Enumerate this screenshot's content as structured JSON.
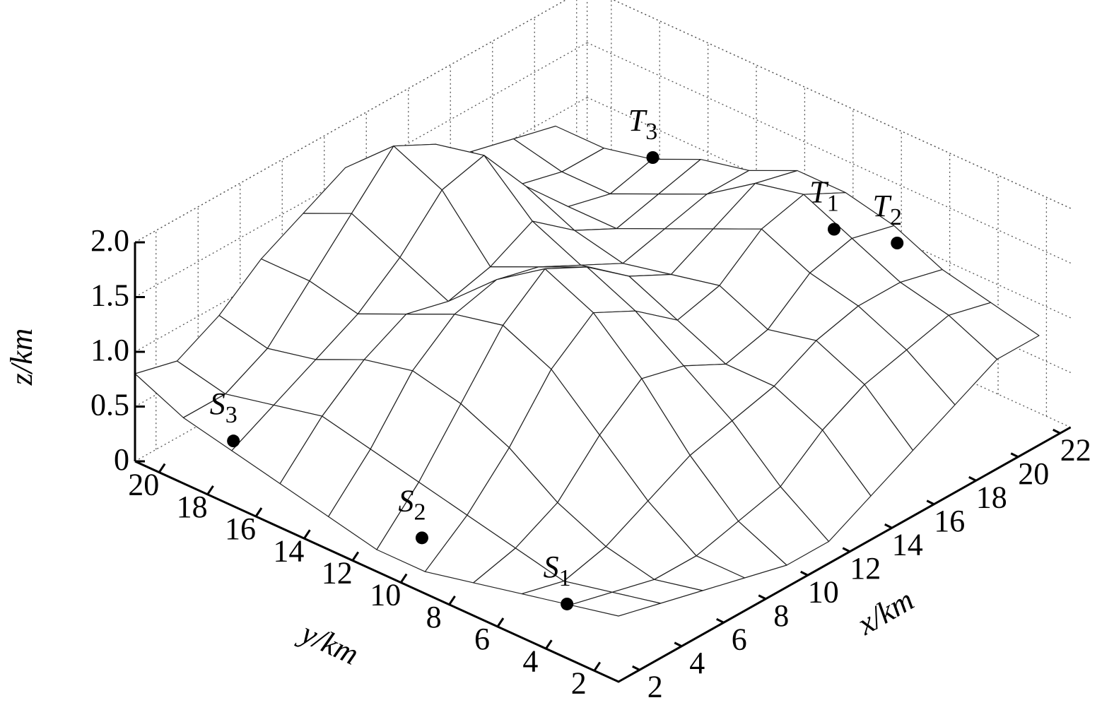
{
  "chart_data": {
    "type": "surface3d",
    "xlabel": "x/km",
    "ylabel": "y/km",
    "zlabel": "z/km",
    "xlim": [
      1,
      22.5
    ],
    "ylim": [
      1,
      21
    ],
    "zlim": [
      0,
      2
    ],
    "xticks": [
      2,
      4,
      6,
      8,
      10,
      12,
      14,
      16,
      18,
      20,
      22
    ],
    "yticks": [
      2,
      4,
      6,
      8,
      10,
      12,
      14,
      16,
      18,
      20
    ],
    "zticks": [
      0,
      0.5,
      {
        "value": 1,
        "label": "1.0"
      },
      1.5,
      {
        "value": 2,
        "label": "2.0"
      }
    ],
    "grid": true,
    "surface": {
      "x": [
        1,
        3,
        5,
        7,
        9,
        11,
        13,
        15,
        17,
        19,
        21
      ],
      "y": [
        1,
        3,
        5,
        7,
        9,
        11,
        13,
        15,
        17,
        19,
        21
      ],
      "z": [
        [
          0.6,
          0.5,
          0.4,
          0.3,
          0.2,
          0.2,
          0.4,
          0.6,
          0.8,
          1.0,
          1.0
        ],
        [
          0.5,
          0.4,
          0.3,
          0.3,
          0.4,
          0.5,
          0.8,
          1.0,
          1.1,
          1.2,
          1.1
        ],
        [
          0.4,
          0.3,
          0.4,
          0.6,
          0.8,
          0.9,
          1.0,
          1.2,
          1.3,
          1.3,
          1.2
        ],
        [
          0.3,
          0.4,
          0.6,
          1.0,
          1.3,
          1.2,
          1.0,
          1.1,
          1.4,
          1.5,
          1.4
        ],
        [
          0.2,
          0.5,
          0.9,
          1.4,
          1.7,
          1.5,
          1.2,
          1.3,
          1.6,
          1.7,
          1.5
        ],
        [
          0.2,
          0.6,
          1.1,
          1.6,
          1.9,
          1.7,
          1.4,
          1.2,
          1.4,
          1.6,
          1.5
        ],
        [
          0.3,
          0.7,
          1.2,
          1.5,
          1.6,
          1.5,
          1.3,
          1.1,
          1.2,
          1.3,
          1.3
        ],
        [
          0.4,
          0.8,
          1.1,
          1.3,
          1.2,
          1.3,
          1.5,
          1.2,
          1.0,
          1.1,
          1.2
        ],
        [
          0.5,
          0.7,
          0.9,
          1.1,
          1.4,
          1.8,
          1.9,
          1.4,
          1.0,
          0.9,
          1.0
        ],
        [
          0.6,
          0.6,
          0.8,
          1.2,
          1.6,
          2.0,
          1.8,
          1.3,
          1.0,
          0.9,
          0.9
        ],
        [
          0.8,
          0.7,
          0.9,
          1.2,
          1.4,
          1.6,
          1.5,
          1.2,
          1.1,
          1.0,
          0.9
        ]
      ]
    },
    "points": [
      {
        "label": "S",
        "subscript": "1",
        "x": 2,
        "y": 4,
        "z": 0.3
      },
      {
        "label": "S",
        "subscript": "2",
        "x": 2,
        "y": 10,
        "z": 0.3
      },
      {
        "label": "S",
        "subscript": "3",
        "x": 2,
        "y": 17.8,
        "z": 0.4
      },
      {
        "label": "T",
        "subscript": "1",
        "x": 17,
        "y": 6,
        "z": 1.9
      },
      {
        "label": "T",
        "subscript": "2",
        "x": 20,
        "y": 6,
        "z": 1.45
      },
      {
        "label": "T",
        "subscript": "3",
        "x": 17,
        "y": 13.5,
        "z": 1.8
      }
    ]
  }
}
